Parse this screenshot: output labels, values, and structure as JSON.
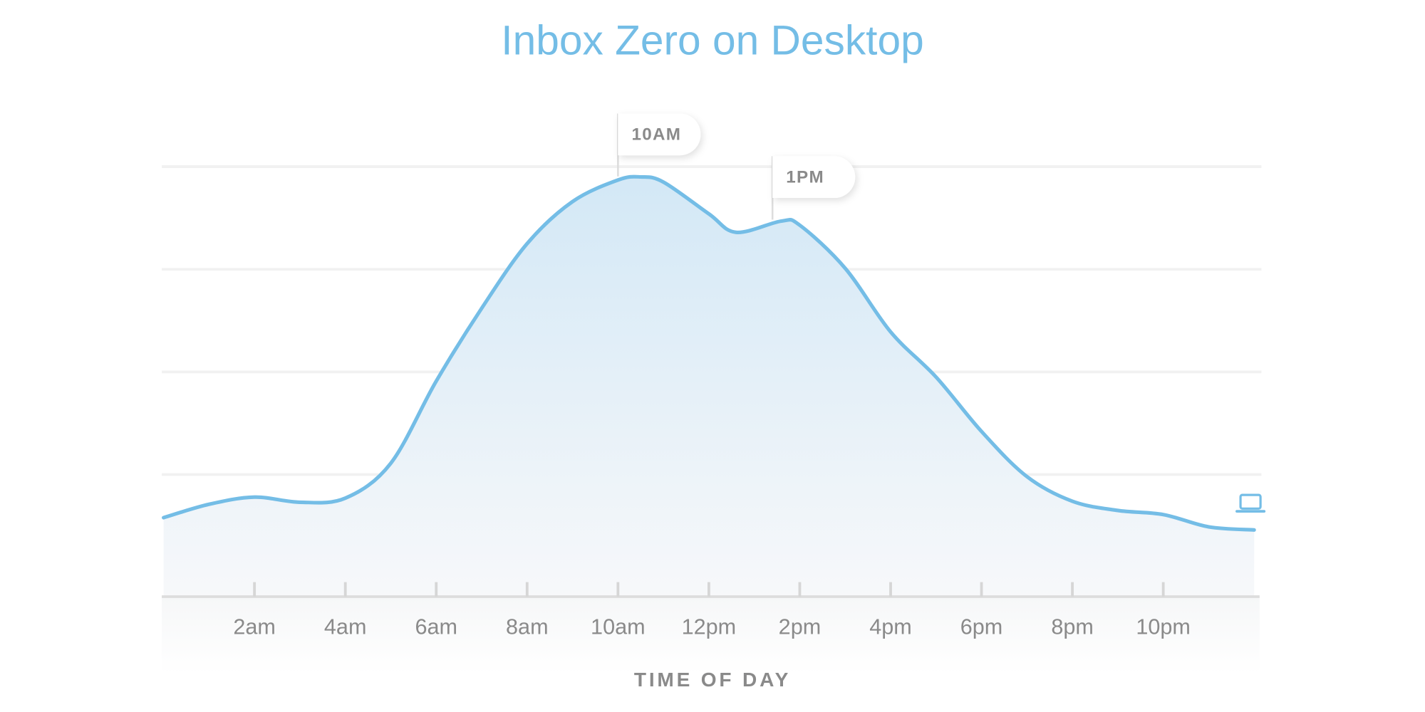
{
  "chart_data": {
    "type": "area",
    "title": "Inbox Zero on Desktop",
    "x_label": "TIME OF DAY",
    "x": [
      0,
      1,
      2,
      3,
      4,
      5,
      6,
      7,
      8,
      9,
      10,
      10.5,
      11,
      12,
      12.6,
      13.6,
      14,
      15,
      16,
      17,
      18,
      19,
      20,
      21,
      22,
      23,
      24
    ],
    "values": [
      0.77,
      0.9,
      0.97,
      0.92,
      0.96,
      1.3,
      2.1,
      2.81,
      3.44,
      3.85,
      4.06,
      4.09,
      4.04,
      3.73,
      3.55,
      3.66,
      3.62,
      3.2,
      2.58,
      2.14,
      1.61,
      1.17,
      0.93,
      0.84,
      0.8,
      0.68,
      0.65
    ],
    "color": "#74bde6",
    "xlim": [
      0,
      24
    ],
    "xticks": [
      {
        "value": 2,
        "label": "2am"
      },
      {
        "value": 4,
        "label": "4am"
      },
      {
        "value": 6,
        "label": "6am"
      },
      {
        "value": 8,
        "label": "8am"
      },
      {
        "value": 10,
        "label": "10am"
      },
      {
        "value": 12,
        "label": "12pm"
      },
      {
        "value": 14,
        "label": "2pm"
      },
      {
        "value": 16,
        "label": "4pm"
      },
      {
        "value": 18,
        "label": "6pm"
      },
      {
        "value": 20,
        "label": "8pm"
      },
      {
        "value": 22,
        "label": "10pm"
      }
    ],
    "ylim": [
      0,
      5.3
    ],
    "yticks": [
      1.19,
      2.19,
      3.19,
      4.19
    ],
    "grid": true,
    "annotations": [
      {
        "x": 10,
        "label": "10AM"
      },
      {
        "x": 13.4,
        "label": "1PM"
      }
    ]
  }
}
